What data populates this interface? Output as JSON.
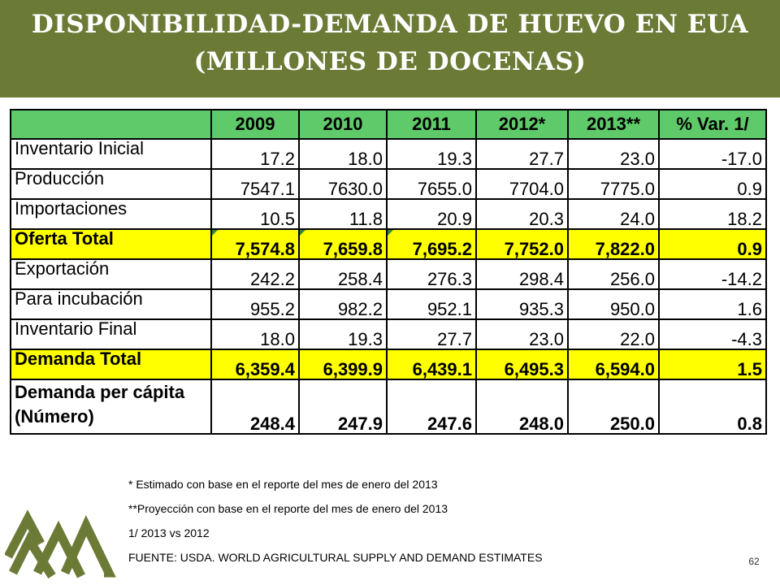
{
  "title": {
    "line1": "DISPONIBILIDAD-DEMANDA DE HUEVO EN EUA",
    "line2": "(MILLONES DE DOCENAS)"
  },
  "table": {
    "headers": [
      "",
      "2009",
      "2010",
      "2011",
      "2012*",
      "2013**",
      "% Var. 1/"
    ],
    "rows": [
      {
        "label": "Inventario Inicial",
        "values": [
          "17.2",
          "18.0",
          "19.3",
          "27.7",
          "23.0",
          "-17.0"
        ]
      },
      {
        "label": "Producción",
        "values": [
          "7547.1",
          "7630.0",
          "7655.0",
          "7704.0",
          "7775.0",
          "0.9"
        ]
      },
      {
        "label": "Importaciones",
        "values": [
          "10.5",
          "11.8",
          "20.9",
          "20.3",
          "24.0",
          "18.2"
        ]
      },
      {
        "label": "Oferta Total",
        "values": [
          "7,574.8",
          "7,659.8",
          "7,695.2",
          "7,752.0",
          "7,822.0",
          "0.9"
        ]
      },
      {
        "label": "Exportación",
        "values": [
          "242.2",
          "258.4",
          "276.3",
          "298.4",
          "256.0",
          "-14.2"
        ]
      },
      {
        "label": "Para incubación",
        "values": [
          "955.2",
          "982.2",
          "952.1",
          "935.3",
          "950.0",
          "1.6"
        ]
      },
      {
        "label": "Inventario Final",
        "values": [
          "18.0",
          "19.3",
          "27.7",
          "23.0",
          "22.0",
          "-4.3"
        ]
      },
      {
        "label": "Demanda Total",
        "values": [
          "6,359.4",
          "6,399.9",
          "6,439.1",
          "6,495.3",
          "6,594.0",
          "1.5"
        ]
      },
      {
        "label_line1": "Demanda per cápita",
        "label_line2": "(Número)",
        "values": [
          "248.4",
          "247.9",
          "247.6",
          "248.0",
          "250.0",
          "0.8"
        ]
      }
    ]
  },
  "notes": [
    "* Estimado con base en el reporte del mes de enero del 2013",
    "**Proyección con base en el reporte del mes de enero del 2013",
    "1/ 2013 vs 2012",
    "FUENTE: USDA. WORLD AGRICULTURAL SUPPLY AND DEMAND ESTIMATES"
  ],
  "page_number": "62",
  "colors": {
    "title_bg": "#6b7a35",
    "header_bg": "#5fca6a",
    "highlight": "#ffff00",
    "logo": "#6b7a35"
  },
  "icons": {
    "logo": "mountain-logo-icon"
  }
}
